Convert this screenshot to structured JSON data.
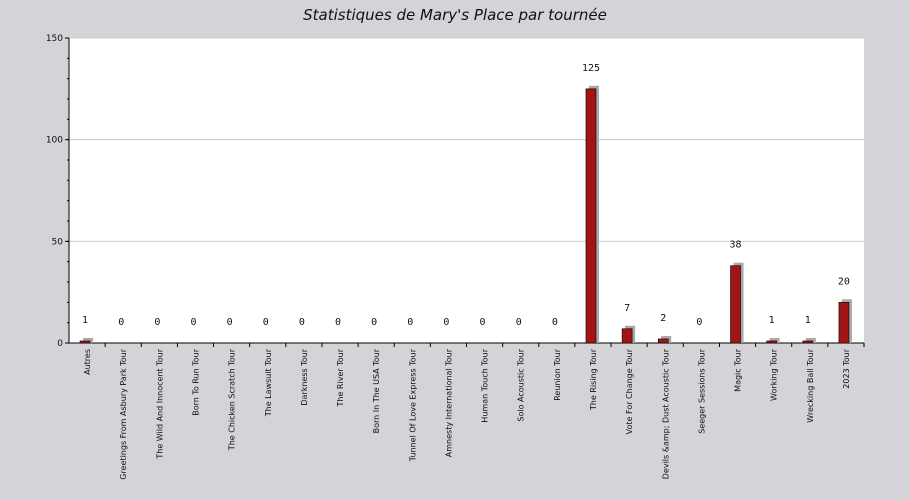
{
  "chart_data": {
    "type": "bar",
    "title": "Statistiques de Mary's Place par tournée",
    "xlabel": "",
    "ylabel": "",
    "ylim": [
      0,
      150
    ],
    "yticks": [
      0,
      50,
      100,
      150
    ],
    "grid": true,
    "categories": [
      "Autres",
      "Greetings From Asbury Park Tour",
      "The Wild And Innocent Tour",
      "Born To Run Tour",
      "The Chicken Scratch Tour",
      "The Lawsuit Tour",
      "Darkness Tour",
      "The River Tour",
      "Born In The USA Tour",
      "Tunnel Of Love Express Tour",
      "Amnesty International Tour",
      "Human Touch Tour",
      "Solo Acoustic Tour",
      "Reunion Tour",
      "The Rising Tour",
      "Vote For Change Tour",
      "Devils &amp; Dust Acoustic Tour",
      "Seeger Sessions Tour",
      "Magic Tour",
      "Working Tour",
      "Wrecking Ball Tour",
      "2023 Tour"
    ],
    "values": [
      1,
      0,
      0,
      0,
      0,
      0,
      0,
      0,
      0,
      0,
      0,
      0,
      0,
      0,
      125,
      7,
      2,
      0,
      38,
      1,
      1,
      20
    ],
    "colors": {
      "bar": "#a31515",
      "bar_shadow": "#a9a9a9",
      "plot_bg": "#ffffff",
      "page_bg": "#d4d3d8",
      "grid": "#cccccc"
    }
  }
}
